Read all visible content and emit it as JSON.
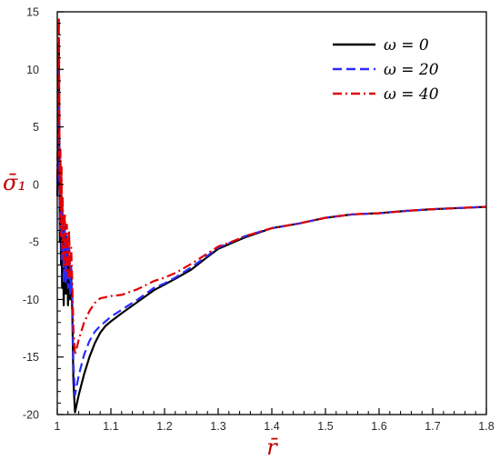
{
  "chart_data": {
    "type": "line",
    "title": "",
    "xlabel": "r̄",
    "ylabel": "σ̄₁",
    "xlim": [
      1.0,
      1.8
    ],
    "ylim": [
      -20,
      15
    ],
    "xticks": [
      1,
      1.1,
      1.2,
      1.3,
      1.4,
      1.5,
      1.6,
      1.7,
      1.8
    ],
    "yticks": [
      15,
      10,
      5,
      0,
      -5,
      -10,
      -15,
      -20
    ],
    "grid": false,
    "legend_position": "top-right",
    "series": [
      {
        "name": "ω = 0",
        "color": "#000000",
        "dash": "solid",
        "points": [
          [
            1.0,
            -1.0
          ],
          [
            1.002,
            3.0
          ],
          [
            1.003,
            12.0
          ],
          [
            1.004,
            2.0
          ],
          [
            1.005,
            -5.0
          ],
          [
            1.006,
            0.0
          ],
          [
            1.007,
            -7.0
          ],
          [
            1.008,
            -1.0
          ],
          [
            1.009,
            -9.0
          ],
          [
            1.01,
            -3.0
          ],
          [
            1.012,
            -10.5
          ],
          [
            1.014,
            -4.0
          ],
          [
            1.016,
            -9.5
          ],
          [
            1.018,
            -5.5
          ],
          [
            1.02,
            -10.5
          ],
          [
            1.022,
            -6.5
          ],
          [
            1.024,
            -10.0
          ],
          [
            1.026,
            -8.0
          ],
          [
            1.028,
            -11.0
          ],
          [
            1.03,
            -17.0
          ],
          [
            1.033,
            -19.8
          ],
          [
            1.04,
            -18.3
          ],
          [
            1.05,
            -16.5
          ],
          [
            1.06,
            -15.0
          ],
          [
            1.07,
            -13.8
          ],
          [
            1.08,
            -12.9
          ],
          [
            1.09,
            -12.3
          ],
          [
            1.1,
            -11.9
          ],
          [
            1.12,
            -11.2
          ],
          [
            1.15,
            -10.2
          ],
          [
            1.18,
            -9.2
          ],
          [
            1.2,
            -8.7
          ],
          [
            1.22,
            -8.2
          ],
          [
            1.25,
            -7.4
          ],
          [
            1.28,
            -6.3
          ],
          [
            1.3,
            -5.6
          ],
          [
            1.33,
            -5.0
          ],
          [
            1.35,
            -4.6
          ],
          [
            1.4,
            -3.8
          ],
          [
            1.45,
            -3.4
          ],
          [
            1.5,
            -2.9
          ],
          [
            1.55,
            -2.6
          ],
          [
            1.6,
            -2.5
          ],
          [
            1.65,
            -2.3
          ],
          [
            1.7,
            -2.15
          ],
          [
            1.75,
            -2.05
          ],
          [
            1.8,
            -1.95
          ]
        ]
      },
      {
        "name": "ω = 20",
        "color": "#2b2bff",
        "dash": "dashed",
        "points": [
          [
            1.0,
            0.0
          ],
          [
            1.002,
            4.0
          ],
          [
            1.003,
            10.0
          ],
          [
            1.004,
            1.0
          ],
          [
            1.005,
            -4.0
          ],
          [
            1.007,
            -0.5
          ],
          [
            1.008,
            -6.5
          ],
          [
            1.01,
            -2.5
          ],
          [
            1.012,
            -8.5
          ],
          [
            1.014,
            -3.5
          ],
          [
            1.016,
            -8.5
          ],
          [
            1.018,
            -4.5
          ],
          [
            1.02,
            -9.0
          ],
          [
            1.022,
            -5.5
          ],
          [
            1.024,
            -9.5
          ],
          [
            1.026,
            -7.0
          ],
          [
            1.028,
            -10.0
          ],
          [
            1.03,
            -15.5
          ],
          [
            1.033,
            -18.3
          ],
          [
            1.04,
            -16.6
          ],
          [
            1.05,
            -14.8
          ],
          [
            1.06,
            -13.6
          ],
          [
            1.07,
            -12.8
          ],
          [
            1.08,
            -12.3
          ],
          [
            1.09,
            -11.9
          ],
          [
            1.1,
            -11.5
          ],
          [
            1.12,
            -10.9
          ],
          [
            1.15,
            -10.0
          ],
          [
            1.18,
            -9.0
          ],
          [
            1.2,
            -8.6
          ],
          [
            1.22,
            -8.1
          ],
          [
            1.25,
            -7.2
          ],
          [
            1.28,
            -6.2
          ],
          [
            1.3,
            -5.5
          ],
          [
            1.33,
            -4.9
          ],
          [
            1.35,
            -4.5
          ],
          [
            1.4,
            -3.8
          ],
          [
            1.45,
            -3.4
          ],
          [
            1.5,
            -2.9
          ],
          [
            1.55,
            -2.6
          ],
          [
            1.6,
            -2.5
          ],
          [
            1.65,
            -2.3
          ],
          [
            1.7,
            -2.15
          ],
          [
            1.75,
            -2.05
          ],
          [
            1.8,
            -1.95
          ]
        ]
      },
      {
        "name": "ω = 40",
        "color": "#e00000",
        "dash": "dashdot",
        "points": [
          [
            1.0,
            0.5
          ],
          [
            1.002,
            8.0
          ],
          [
            1.003,
            14.5
          ],
          [
            1.004,
            5.0
          ],
          [
            1.005,
            -2.0
          ],
          [
            1.006,
            3.0
          ],
          [
            1.007,
            -4.5
          ],
          [
            1.008,
            1.5
          ],
          [
            1.009,
            -6.0
          ],
          [
            1.01,
            -1.0
          ],
          [
            1.012,
            -7.0
          ],
          [
            1.014,
            -2.5
          ],
          [
            1.016,
            -7.5
          ],
          [
            1.018,
            -3.5
          ],
          [
            1.02,
            -8.0
          ],
          [
            1.022,
            -4.0
          ],
          [
            1.024,
            -8.0
          ],
          [
            1.026,
            -5.5
          ],
          [
            1.028,
            -8.5
          ],
          [
            1.03,
            -12.5
          ],
          [
            1.033,
            -14.8
          ],
          [
            1.04,
            -13.5
          ],
          [
            1.05,
            -12.0
          ],
          [
            1.06,
            -11.0
          ],
          [
            1.07,
            -10.3
          ],
          [
            1.08,
            -9.9
          ],
          [
            1.09,
            -9.8
          ],
          [
            1.1,
            -9.7
          ],
          [
            1.12,
            -9.6
          ],
          [
            1.15,
            -9.1
          ],
          [
            1.18,
            -8.4
          ],
          [
            1.2,
            -8.1
          ],
          [
            1.22,
            -7.7
          ],
          [
            1.25,
            -6.9
          ],
          [
            1.28,
            -6.0
          ],
          [
            1.3,
            -5.4
          ],
          [
            1.33,
            -4.9
          ],
          [
            1.35,
            -4.5
          ],
          [
            1.4,
            -3.8
          ],
          [
            1.45,
            -3.4
          ],
          [
            1.5,
            -2.9
          ],
          [
            1.55,
            -2.6
          ],
          [
            1.6,
            -2.5
          ],
          [
            1.65,
            -2.3
          ],
          [
            1.7,
            -2.15
          ],
          [
            1.75,
            -2.05
          ],
          [
            1.8,
            -1.95
          ]
        ]
      }
    ]
  }
}
